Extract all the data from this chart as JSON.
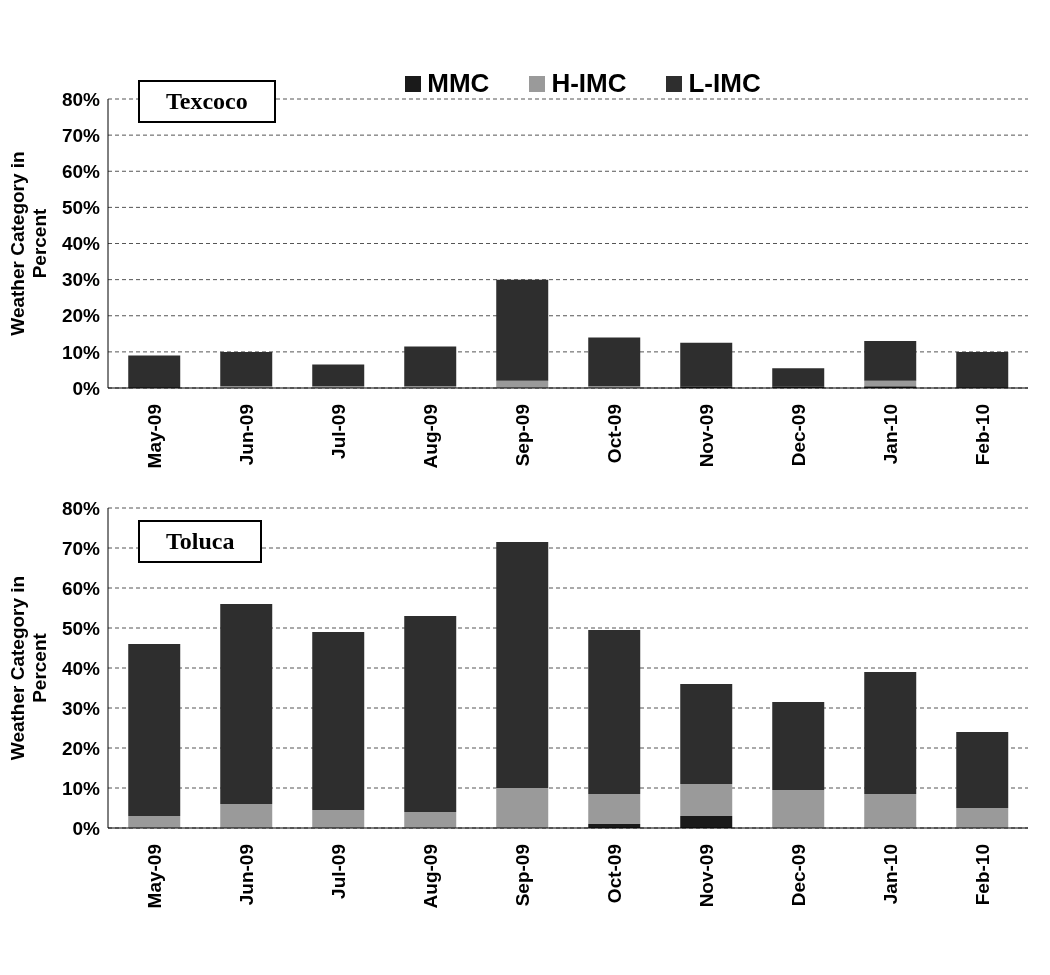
{
  "chart_data": [
    {
      "type": "bar",
      "title": "Texcoco",
      "ylabel": "Weather Category in Percent",
      "stacked": true,
      "legend": "top",
      "grid": "y",
      "categories": [
        "May-09",
        "Jun-09",
        "Jul-09",
        "Aug-09",
        "Sep-09",
        "Oct-09",
        "Nov-09",
        "Dec-09",
        "Jan-10",
        "Feb-10"
      ],
      "ylim": [
        0,
        80
      ],
      "yticks": [
        {
          "value": 0,
          "label": "0%"
        },
        {
          "value": 10,
          "label": "10%"
        },
        {
          "value": 20,
          "label": "20%"
        },
        {
          "value": 30,
          "label": "30%"
        },
        {
          "value": 40,
          "label": "40%"
        },
        {
          "value": 50,
          "label": "50%"
        },
        {
          "value": 60,
          "label": "60%"
        },
        {
          "value": 70,
          "label": "70%"
        },
        {
          "value": 80,
          "label": "80%"
        }
      ],
      "series": [
        {
          "name": "MMC",
          "color": "#1a1a1a",
          "values": [
            0,
            0,
            0,
            0,
            0,
            0,
            0.5,
            0.5,
            0.5,
            0
          ]
        },
        {
          "name": "H-IMC",
          "color": "#9a9a9a",
          "values": [
            0,
            0.5,
            0.5,
            0.5,
            2,
            0.5,
            0,
            0,
            1.5,
            0
          ]
        },
        {
          "name": "L-IMC",
          "color": "#2e2e2e",
          "values": [
            9,
            9.5,
            6,
            11,
            28,
            13.5,
            12,
            5,
            11,
            10
          ]
        }
      ]
    },
    {
      "type": "bar",
      "title": "Toluca",
      "ylabel": "Weather Category in Percent",
      "stacked": true,
      "grid": "y",
      "categories": [
        "May-09",
        "Jun-09",
        "Jul-09",
        "Aug-09",
        "Sep-09",
        "Oct-09",
        "Nov-09",
        "Dec-09",
        "Jan-10",
        "Feb-10"
      ],
      "ylim": [
        0,
        80
      ],
      "yticks": [
        {
          "value": 0,
          "label": "0%"
        },
        {
          "value": 10,
          "label": "10%"
        },
        {
          "value": 20,
          "label": "20%"
        },
        {
          "value": 30,
          "label": "30%"
        },
        {
          "value": 40,
          "label": "40%"
        },
        {
          "value": 50,
          "label": "50%"
        },
        {
          "value": 60,
          "label": "60%"
        },
        {
          "value": 70,
          "label": "70%"
        },
        {
          "value": 80,
          "label": "80%"
        }
      ],
      "series": [
        {
          "color": "#1a1a1a",
          "values": [
            0,
            0,
            0,
            0,
            0,
            1,
            3,
            0,
            0,
            0
          ]
        },
        {
          "color": "#9a9a9a",
          "values": [
            3,
            6,
            4.5,
            4,
            10,
            7.5,
            8,
            9.5,
            8.5,
            5
          ]
        },
        {
          "color": "#2e2e2e",
          "values": [
            43,
            50,
            44.5,
            49,
            61.5,
            41,
            25,
            22,
            30.5,
            19
          ]
        }
      ]
    }
  ]
}
